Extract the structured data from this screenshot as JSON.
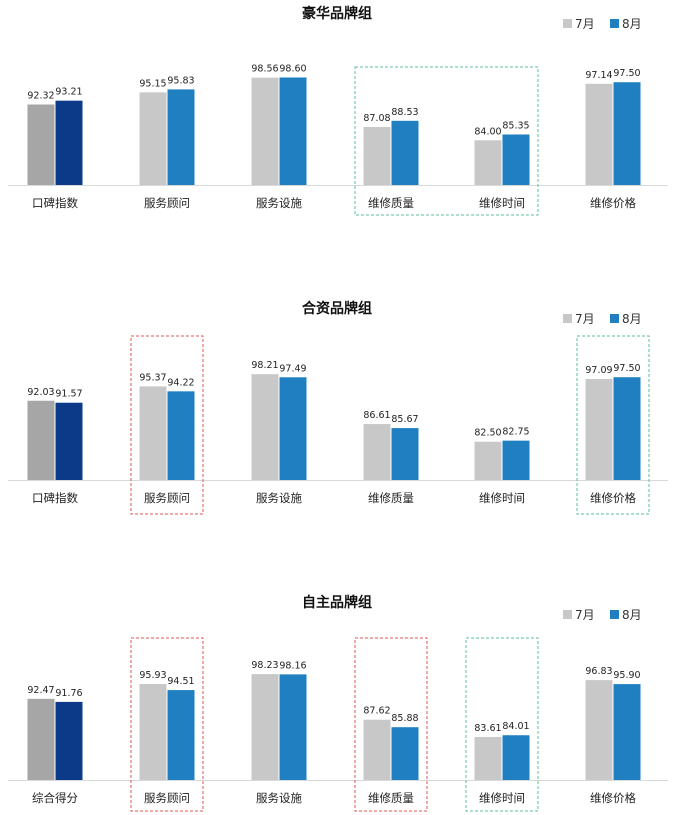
{
  "legend_labels": [
    "7月",
    "8月"
  ],
  "colors": {
    "july_light": "#c8c8c8",
    "aug_light": "#1f7fc1",
    "july_first": "#a6a6a6",
    "aug_first": "#0c3a88",
    "highlight_green": "#5bbf9f",
    "highlight_red": "#e05555",
    "axis": "#d9d9d9"
  },
  "chart_data": [
    {
      "type": "bar",
      "title": "豪华品牌组",
      "categories": [
        "口碑指数",
        "服务顾问",
        "服务设施",
        "维修质量",
        "维修时间",
        "维修价格"
      ],
      "series": [
        {
          "name": "7月",
          "values": [
            92.32,
            95.15,
            98.56,
            87.08,
            84.0,
            97.14
          ]
        },
        {
          "name": "8月",
          "values": [
            93.21,
            95.83,
            98.6,
            88.53,
            85.35,
            97.5
          ]
        }
      ],
      "highlights": [
        {
          "categories": [
            "维修质量",
            "维修时间"
          ],
          "color": "green"
        }
      ]
    },
    {
      "type": "bar",
      "title": "合资品牌组",
      "categories": [
        "口碑指数",
        "服务顾问",
        "服务设施",
        "维修质量",
        "维修时间",
        "维修价格"
      ],
      "series": [
        {
          "name": "7月",
          "values": [
            92.03,
            95.37,
            98.21,
            86.61,
            82.5,
            97.09
          ]
        },
        {
          "name": "8月",
          "values": [
            91.57,
            94.22,
            97.49,
            85.67,
            82.75,
            97.5
          ]
        }
      ],
      "highlights": [
        {
          "categories": [
            "服务顾问"
          ],
          "color": "red"
        },
        {
          "categories": [
            "维修价格"
          ],
          "color": "green"
        }
      ]
    },
    {
      "type": "bar",
      "title": "自主品牌组",
      "categories": [
        "综合得分",
        "服务顾问",
        "服务设施",
        "维修质量",
        "维修时间",
        "维修价格"
      ],
      "series": [
        {
          "name": "7月",
          "values": [
            92.47,
            95.93,
            98.23,
            87.62,
            83.61,
            96.83
          ]
        },
        {
          "name": "8月",
          "values": [
            91.76,
            94.51,
            98.16,
            85.88,
            84.01,
            95.9
          ]
        }
      ],
      "highlights": [
        {
          "categories": [
            "服务顾问"
          ],
          "color": "red"
        },
        {
          "categories": [
            "维修质量"
          ],
          "color": "red"
        },
        {
          "categories": [
            "维修时间"
          ],
          "color": "green"
        }
      ]
    }
  ]
}
